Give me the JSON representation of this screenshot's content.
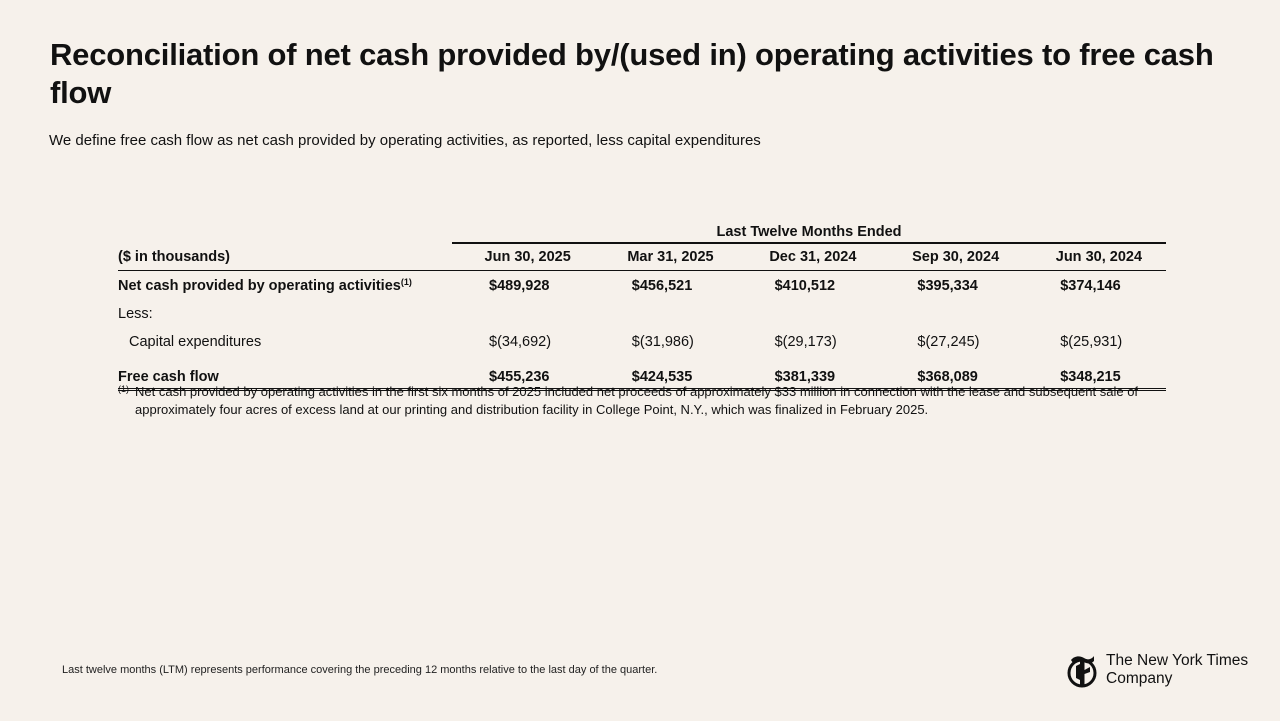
{
  "title": "Reconciliation of net cash provided by/(used in) operating activities to free cash flow",
  "subtitle": "We define free cash flow as net cash provided by operating activities, as reported, less capital expenditures",
  "table": {
    "period_header": "Last Twelve Months Ended",
    "units_label": "($ in thousands)",
    "columns": [
      "Jun 30, 2025",
      "Mar 31, 2025",
      "Dec 31, 2024",
      "Sep 30, 2024",
      "Jun 30, 2024"
    ],
    "rows": [
      {
        "label": "Net cash provided by operating activities",
        "footnote_ref": "(1)",
        "values": [
          "$489,928",
          "$456,521",
          "$410,512",
          "$395,334",
          "$374,146"
        ]
      },
      {
        "label": "Less:"
      },
      {
        "label": "Capital expenditures",
        "values": [
          "$(34,692)",
          "$(31,986)",
          "$(29,173)",
          "$(27,245)",
          "$(25,931)"
        ]
      },
      {
        "label": "Free cash flow",
        "values": [
          "$455,236",
          "$424,535",
          "$381,339",
          "$368,089",
          "$348,215"
        ]
      }
    ]
  },
  "footnote": {
    "marker": "(1)",
    "text": "Net cash provided by operating activities in the first six months of 2025 included net proceeds of approximately $33 million in connection with the lease and subsequent sale of approximately four acres of excess land at our printing and distribution facility in College Point, N.Y., which was finalized in February 2025."
  },
  "bottom_note": "Last twelve months (LTM) represents performance covering the preceding 12 months relative to the last day of the quarter.",
  "logo": {
    "icon": "nyt-t-logo-icon",
    "line1": "The New York Times",
    "line2": "Company"
  }
}
